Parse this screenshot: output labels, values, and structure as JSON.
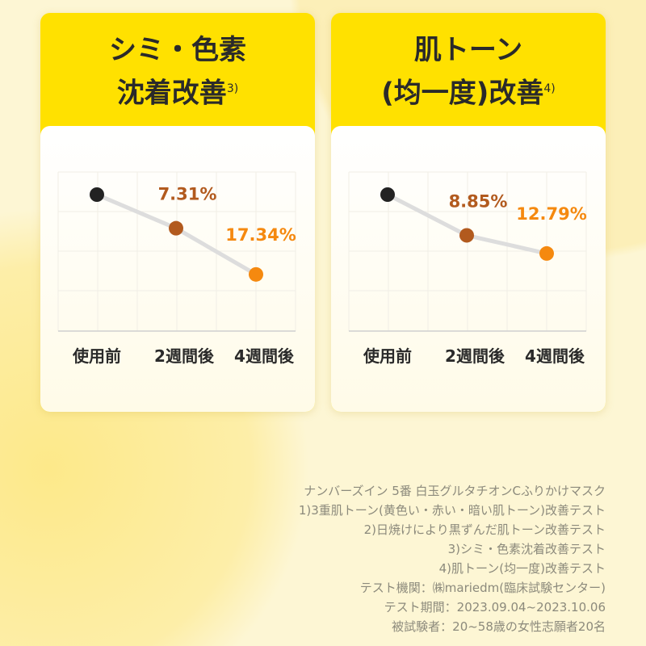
{
  "chart_data": [
    {
      "type": "line",
      "title_line1": "シミ・色素",
      "title_line2": "沈着改善",
      "title_note": "3)",
      "categories": [
        "使用前",
        "2週間後",
        "4週間後"
      ],
      "improvement_percent": [
        0,
        7.31,
        17.34
      ],
      "labels": [
        "",
        "7.31%",
        "17.34%"
      ],
      "point_colors": [
        "#222222",
        "#b25a1e",
        "#f5890f"
      ],
      "line_color": "#dddddd",
      "grid": true
    },
    {
      "type": "line",
      "title_line1": "肌トーン",
      "title_line2": "(均一度)改善",
      "title_note": "4)",
      "categories": [
        "使用前",
        "2週間後",
        "4週間後"
      ],
      "improvement_percent": [
        0,
        8.85,
        12.79
      ],
      "labels": [
        "",
        "8.85%",
        "12.79%"
      ],
      "point_colors": [
        "#222222",
        "#b25a1e",
        "#f5890f"
      ],
      "line_color": "#dddddd",
      "grid": true
    }
  ],
  "footer": [
    "ナンバーズイン 5番 白玉グルタチオンCふりかけマスク",
    "1)3重肌トーン(黄色い・赤い・暗い肌トーン)改善テスト",
    "2)日焼けにより黒ずんだ肌トーン改善テスト",
    "3)シミ・色素沈着改善テスト",
    "4)肌トーン(均一度)改善テスト",
    "テスト機関：㈱mariedm(臨床試験センター)",
    "テスト期間：2023.09.04~2023.10.06",
    "被試験者：20~58歳の女性志願者20名"
  ]
}
